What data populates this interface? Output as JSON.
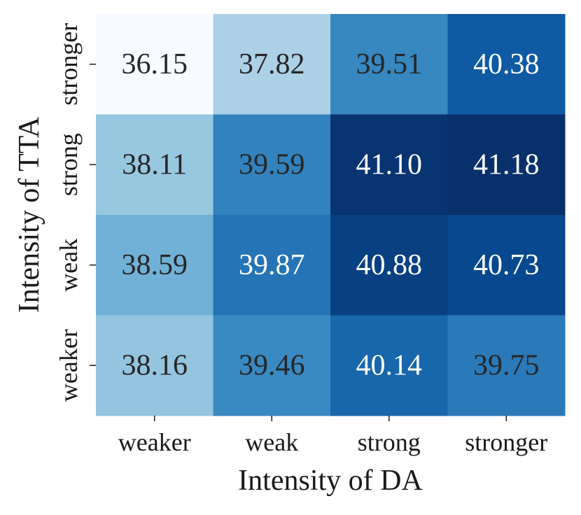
{
  "chart_data": {
    "type": "heatmap",
    "xlabel": "Intensity of DA",
    "ylabel": "Intensity of TTA",
    "x_categories": [
      "weaker",
      "weak",
      "strong",
      "stronger"
    ],
    "y_categories": [
      "stronger",
      "strong",
      "weak",
      "weaker"
    ],
    "values": [
      [
        36.15,
        37.82,
        39.51,
        40.38
      ],
      [
        38.11,
        39.59,
        41.1,
        41.18
      ],
      [
        38.59,
        39.87,
        40.88,
        40.73
      ],
      [
        38.16,
        39.46,
        40.14,
        39.75
      ]
    ],
    "value_format": "2 decimals",
    "colormap": "Blues",
    "colorbar": false,
    "vmin": 36.15,
    "vmax": 41.18,
    "low_color": "#f7fbff",
    "high_color": "#08306b",
    "text_color_dark": "#262626",
    "text_color_light": "#ffffff"
  }
}
